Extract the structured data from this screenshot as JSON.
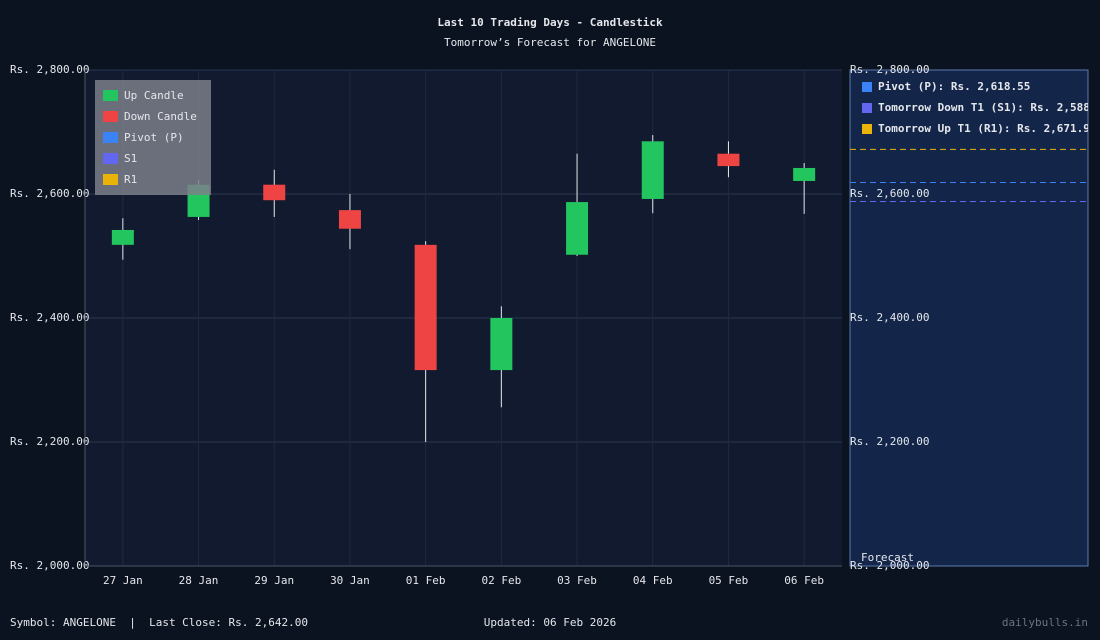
{
  "chart_data": {
    "type": "candlestick",
    "title": "Last 10 Trading Days - Candlestick",
    "subtitle": "Tomorrow’s Forecast for ANGELONE",
    "categories": [
      "27 Jan",
      "28 Jan",
      "29 Jan",
      "30 Jan",
      "01 Feb",
      "02 Feb",
      "03 Feb",
      "04 Feb",
      "05 Feb",
      "06 Feb"
    ],
    "open": [
      2518,
      2563,
      2615,
      2574,
      2518,
      2316,
      2502,
      2592,
      2665,
      2621
    ],
    "high": [
      2561,
      2623,
      2639,
      2600,
      2524,
      2419,
      2665,
      2695,
      2685,
      2650
    ],
    "low": [
      2494,
      2558,
      2563,
      2511,
      2200,
      2256,
      2500,
      2569,
      2627,
      2568
    ],
    "close": [
      2542,
      2615,
      2590,
      2544,
      2316,
      2400,
      2587,
      2685,
      2645,
      2642
    ],
    "up_color": "#22c55e",
    "down_color": "#ef4444",
    "ylim": [
      2000,
      2800
    ],
    "yticks": [
      {
        "value": 2000,
        "label": "Rs. 2,000.00"
      },
      {
        "value": 2200,
        "label": "Rs. 2,200.00"
      },
      {
        "value": 2400,
        "label": "Rs. 2,400.00"
      },
      {
        "value": 2600,
        "label": "Rs. 2,600.00"
      },
      {
        "value": 2800,
        "label": "Rs. 2,800.00"
      }
    ],
    "grid": true,
    "legend": [
      {
        "name": "Up Candle",
        "color": "#22c55e"
      },
      {
        "name": "Down Candle",
        "color": "#ef4444"
      },
      {
        "name": "Pivot (P)",
        "color": "#3b82f6"
      },
      {
        "name": "S1",
        "color": "#6366f1"
      },
      {
        "name": "R1",
        "color": "#eab308"
      }
    ],
    "legend_position": "upper left",
    "forecast_label": "Forecast",
    "levels": [
      {
        "label": "Pivot (P): Rs. 2,618.55",
        "value": 2618.55,
        "color": "#3b82f6"
      },
      {
        "label": "Tomorrow Down T1 (S1): Rs. 2,588",
        "value": 2588,
        "color": "#6366f1"
      },
      {
        "label": "Tomorrow Up T1 (R1): Rs. 2,671.9",
        "value": 2671.9,
        "color": "#eab308"
      }
    ]
  },
  "footer": {
    "symbol": "Symbol: ANGELONE  |  Last Close: Rs. 2,642.00",
    "updated": "Updated: 06 Feb 2026",
    "brand": "dailybulls.in"
  }
}
